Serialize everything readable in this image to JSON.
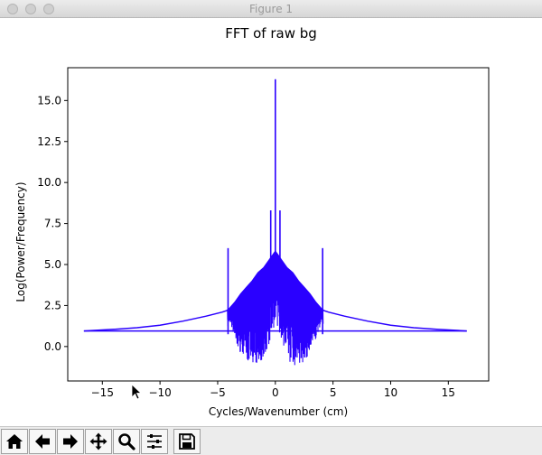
{
  "window": {
    "title": "Figure 1"
  },
  "toolbar": {
    "buttons": [
      {
        "name": "home-icon",
        "label": "Home"
      },
      {
        "name": "back-arrow-icon",
        "label": "Back"
      },
      {
        "name": "forward-arrow-icon",
        "label": "Forward"
      },
      {
        "name": "pan-icon",
        "label": "Pan"
      },
      {
        "name": "zoom-icon",
        "label": "Zoom"
      },
      {
        "name": "configure-subplots-icon",
        "label": "Configure subplots"
      },
      {
        "name": "save-icon",
        "label": "Save"
      }
    ]
  },
  "colors": {
    "line": "#2a00ff",
    "axis": "#000000"
  },
  "chart_data": {
    "type": "line",
    "title": "FFT of raw bg",
    "xlabel": "Cycles/Wavenumber (cm)",
    "ylabel": "Log(Power/Frequency)",
    "xlim": [
      -18,
      18.5
    ],
    "ylim": [
      -2.1,
      17
    ],
    "xticks": [
      -15,
      -10,
      -5,
      0,
      5,
      10,
      15
    ],
    "xtick_labels": [
      "−15",
      "−10",
      "−5",
      "0",
      "5",
      "10",
      "15"
    ],
    "yticks": [
      0.0,
      2.5,
      5.0,
      7.5,
      10.0,
      12.5,
      15.0
    ],
    "ytick_labels": [
      "0.0",
      "2.5",
      "5.0",
      "7.5",
      "10.0",
      "12.5",
      "15.0"
    ],
    "grid": false,
    "series": [
      {
        "envelope_upper": {
          "x": [
            -16.6,
            -14,
            -12,
            -10,
            -8,
            -6,
            -4.6,
            -4.2,
            -4.0,
            -3.5,
            -3,
            -2.5,
            -2,
            -1.5,
            -1,
            -0.5,
            -0.2,
            0,
            0.2,
            0.5,
            1,
            1.5,
            2,
            2.5,
            3,
            3.5,
            4.0,
            4.2,
            4.6,
            6,
            8,
            10,
            12,
            14,
            16.6
          ],
          "y": [
            0.95,
            1.05,
            1.15,
            1.3,
            1.55,
            1.85,
            2.1,
            2.2,
            2.3,
            2.7,
            3.2,
            3.6,
            4.0,
            4.5,
            4.8,
            5.3,
            5.6,
            5.8,
            5.6,
            5.3,
            4.8,
            4.5,
            4.0,
            3.6,
            3.2,
            2.7,
            2.3,
            2.2,
            2.1,
            1.85,
            1.55,
            1.3,
            1.15,
            1.05,
            0.95
          ]
        },
        "envelope_lower": {
          "x": [
            -16.6,
            -4.2,
            -4.0,
            -3.5,
            -3,
            -2.5,
            -2,
            -1.5,
            -1,
            -0.5,
            0,
            0.5,
            1,
            1.5,
            2,
            2.5,
            3,
            3.5,
            4.0,
            4.2,
            16.6
          ],
          "y": [
            0.95,
            1.0,
            1.5,
            0.5,
            -0.5,
            -1.3,
            -1.0,
            -1.3,
            -0.7,
            0.3,
            1.5,
            0.3,
            -0.7,
            -1.3,
            -1.0,
            -1.3,
            -0.5,
            0.5,
            1.5,
            1.0,
            0.95
          ]
        },
        "baseline": {
          "x": [
            -16.6,
            16.6
          ],
          "y": [
            0.95,
            0.95
          ]
        },
        "spikes": [
          {
            "x": 0.0,
            "y": 16.3
          },
          {
            "x": -0.4,
            "y": 8.3
          },
          {
            "x": 0.4,
            "y": 8.3
          },
          {
            "x": -4.1,
            "y": 6.0
          },
          {
            "x": 4.1,
            "y": 6.0
          }
        ]
      }
    ]
  }
}
